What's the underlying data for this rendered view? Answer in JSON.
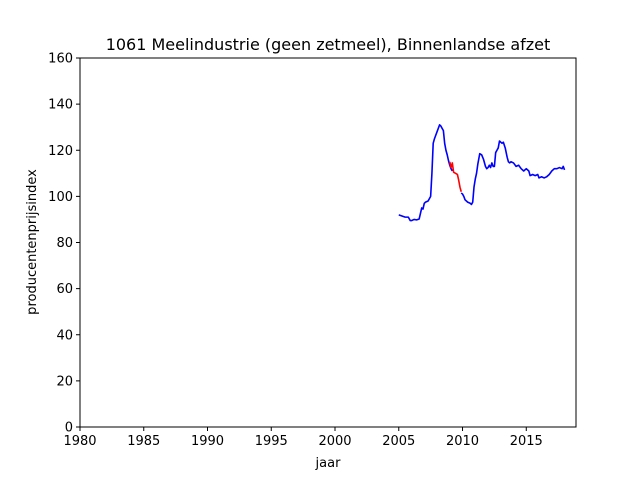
{
  "chart_data": {
    "type": "line",
    "title": "1061 Meelindustrie (geen zetmeel), Binnenlandse afzet",
    "xlabel": "jaar",
    "ylabel": "producentenprijsindex",
    "xlim": [
      1980,
      2018.9
    ],
    "ylim": [
      0,
      160
    ],
    "xticks": [
      1980,
      1985,
      1990,
      1995,
      2000,
      2005,
      2010,
      2015
    ],
    "yticks": [
      0,
      20,
      40,
      60,
      80,
      100,
      120,
      140,
      160
    ],
    "grid": false,
    "colors": {
      "primary": "#0000ff",
      "highlight": "#ff0000"
    },
    "series": [
      {
        "color": "#0000ff",
        "x": [
          2005.0,
          2005.25,
          2005.5,
          2005.75,
          2005.9,
          2006.0,
          2006.2,
          2006.4,
          2006.6,
          2006.8,
          2006.9,
          2007.0,
          2007.1,
          2007.3,
          2007.5,
          2007.6,
          2007.7,
          2007.8,
          2007.9,
          2008.0,
          2008.1,
          2008.2,
          2008.3,
          2008.4,
          2008.5,
          2008.6,
          2008.7,
          2008.8,
          2008.9,
          2009.0,
          2009.1,
          2009.2
        ],
        "y": [
          92.0,
          91.5,
          91.0,
          91.0,
          89.5,
          89.5,
          90.0,
          89.8,
          90.2,
          95.0,
          94.5,
          97.0,
          97.5,
          98.0,
          100.0,
          110.0,
          123.0,
          125.0,
          126.5,
          128.0,
          129.5,
          131.0,
          130.5,
          129.5,
          128.5,
          123.0,
          120.0,
          118.0,
          115.5,
          113.5,
          112.0,
          111.0
        ]
      },
      {
        "color": "#ff0000",
        "x": [
          2009.0,
          2009.1,
          2009.2,
          2009.3,
          2009.45,
          2009.6,
          2009.7,
          2009.8,
          2009.9
        ],
        "y": [
          115.0,
          112.5,
          114.5,
          110.5,
          110.0,
          109.5,
          107.0,
          104.0,
          102.0
        ]
      },
      {
        "color": "#0000ff",
        "x": [
          2009.9,
          2010.0,
          2010.1,
          2010.2,
          2010.4,
          2010.6,
          2010.7,
          2010.8,
          2010.9,
          2011.0,
          2011.1,
          2011.2,
          2011.35,
          2011.5,
          2011.65,
          2011.8,
          2011.9,
          2012.0,
          2012.1,
          2012.2,
          2012.3,
          2012.4,
          2012.5,
          2012.6,
          2012.7,
          2012.8,
          2012.9,
          2013.0,
          2013.1,
          2013.2,
          2013.35,
          2013.5,
          2013.6,
          2013.7,
          2013.8,
          2014.0,
          2014.2,
          2014.4,
          2014.6,
          2014.8,
          2015.0,
          2015.2,
          2015.3,
          2015.5,
          2015.7,
          2015.9,
          2016.0,
          2016.2,
          2016.4,
          2016.6,
          2016.8,
          2017.0,
          2017.2,
          2017.4,
          2017.6,
          2017.8,
          2017.9,
          2018.0
        ],
        "y": [
          101.5,
          101.0,
          100.0,
          98.5,
          97.5,
          97.0,
          96.5,
          97.5,
          104.0,
          107.5,
          110.0,
          114.0,
          118.5,
          118.0,
          116.0,
          113.0,
          112.0,
          112.5,
          113.5,
          112.5,
          114.5,
          113.0,
          113.0,
          119.0,
          120.0,
          121.0,
          124.0,
          123.5,
          123.0,
          123.5,
          121.0,
          117.0,
          115.0,
          114.5,
          115.0,
          114.5,
          113.0,
          113.5,
          112.0,
          111.0,
          112.0,
          111.0,
          109.0,
          109.5,
          109.0,
          109.5,
          108.0,
          108.5,
          108.0,
          108.5,
          109.5,
          111.0,
          112.0,
          112.0,
          112.5,
          112.0,
          113.0,
          111.5
        ]
      }
    ]
  }
}
